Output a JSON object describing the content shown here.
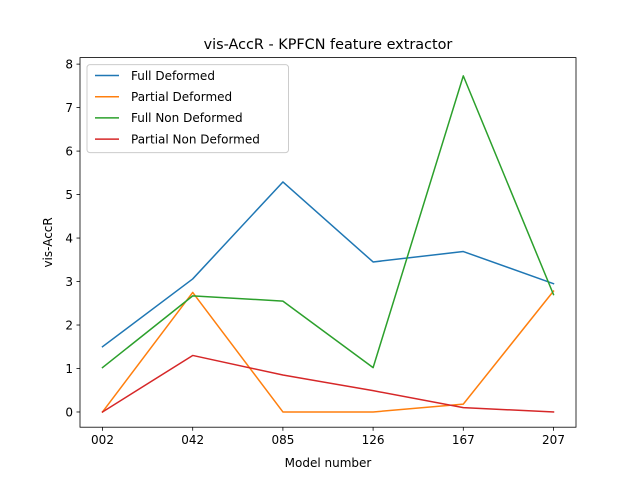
{
  "chart_data": {
    "type": "line",
    "title": "vis-AccR - KPFCN feature extractor",
    "xlabel": "Model number",
    "ylabel": "vis-AccR",
    "categories": [
      "002",
      "042",
      "085",
      "126",
      "167",
      "207"
    ],
    "ylim": [
      -0.35,
      8.15
    ],
    "yticks": [
      0,
      1,
      2,
      3,
      4,
      5,
      6,
      7,
      8
    ],
    "grid": false,
    "legend_position": "upper-left",
    "series": [
      {
        "name": "Full Deformed",
        "color": "#1f77b4",
        "values": [
          1.5,
          3.06,
          5.29,
          3.45,
          3.69,
          2.95
        ]
      },
      {
        "name": "Partial Deformed",
        "color": "#ff7f0e",
        "values": [
          0.0,
          2.75,
          0.0,
          0.0,
          0.18,
          2.78
        ]
      },
      {
        "name": "Full Non Deformed",
        "color": "#2ca02c",
        "values": [
          1.02,
          2.67,
          2.55,
          1.02,
          7.73,
          2.7
        ]
      },
      {
        "name": "Partial Non Deformed",
        "color": "#d62728",
        "values": [
          0.0,
          1.3,
          0.85,
          0.49,
          0.1,
          0.0
        ]
      }
    ]
  }
}
